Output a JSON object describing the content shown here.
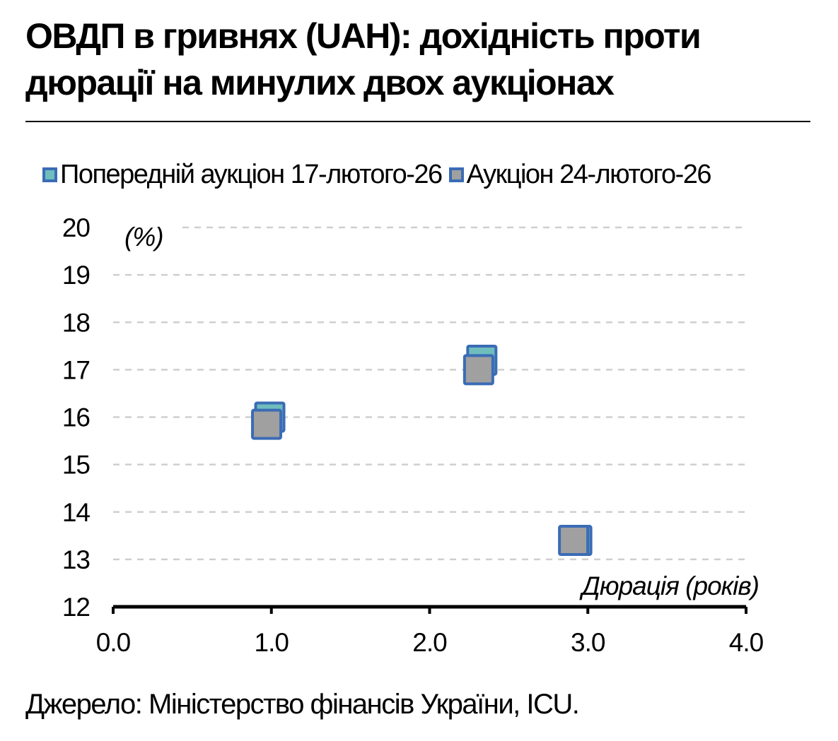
{
  "title": "ОВДП в гривнях (UAH): дохідність проти дюрації на минулих двох аукціонах",
  "source": "Джерело: Міністерство фінансів України, ICU.",
  "colors": {
    "prev_fill": "#6fbdbd",
    "curr_fill": "#a0a0a0",
    "marker_border": "#3b6cb5",
    "grid": "#cfcfcf"
  },
  "chart_data": {
    "type": "scatter",
    "title": "ОВДП в гривнях (UAH): дохідність проти дюрації на минулих двох аукціонах",
    "xlabel": "Дюрація (років)",
    "ylabel": "(%)",
    "xlim": [
      0,
      4
    ],
    "ylim": [
      12,
      20
    ],
    "x_ticks": [
      "0.0",
      "1.0",
      "2.0",
      "3.0",
      "4.0"
    ],
    "y_ticks": [
      "12",
      "13",
      "14",
      "15",
      "16",
      "17",
      "18",
      "19",
      "20"
    ],
    "grid": "horizontal-dashed",
    "legend_position": "top",
    "series": [
      {
        "name": "Попередній аукціон 17-лютого-26",
        "points": [
          {
            "x": 0.99,
            "y": 16.0
          },
          {
            "x": 2.33,
            "y": 17.2
          },
          {
            "x": 2.93,
            "y": 13.4
          }
        ]
      },
      {
        "name": "Аукціон 24-лютого-26",
        "points": [
          {
            "x": 0.97,
            "y": 15.85
          },
          {
            "x": 2.31,
            "y": 17.0
          },
          {
            "x": 2.91,
            "y": 13.4
          }
        ]
      }
    ]
  }
}
